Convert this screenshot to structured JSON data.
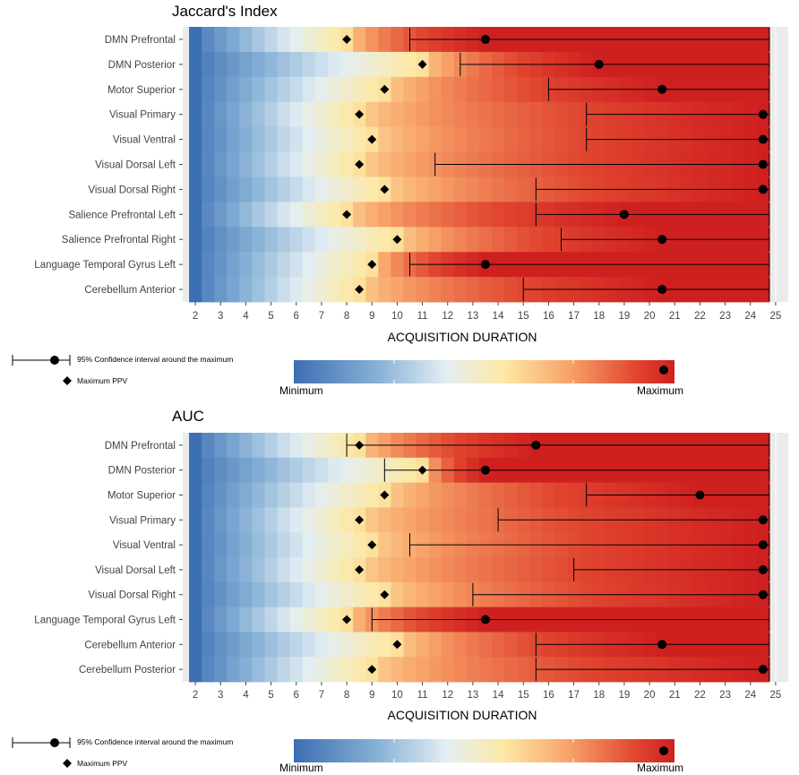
{
  "chart_data": [
    {
      "type": "heatmap",
      "title": "Jaccard's Index",
      "xlabel": "ACQUISITION DURATION",
      "ylabel": "",
      "xlim": [
        1.5,
        25.5
      ],
      "x_ticks": [
        2,
        3,
        4,
        5,
        6,
        7,
        8,
        9,
        10,
        11,
        12,
        13,
        14,
        15,
        16,
        17,
        18,
        19,
        20,
        21,
        22,
        23,
        24,
        25
      ],
      "heat_x_range": [
        1.75,
        24.75
      ],
      "rows": [
        {
          "label": "DMN Prefrontal",
          "max_ppv": 8,
          "maximum": 13.5,
          "ci": [
            10.5,
            24.75
          ]
        },
        {
          "label": "DMN Posterior",
          "max_ppv": 11,
          "maximum": 18,
          "ci": [
            12.5,
            24.75
          ]
        },
        {
          "label": "Motor Superior",
          "max_ppv": 9.5,
          "maximum": 20.5,
          "ci": [
            16,
            24.75
          ]
        },
        {
          "label": "Visual Primary",
          "max_ppv": 8.5,
          "maximum": 24.5,
          "ci": [
            17.5,
            24.75
          ]
        },
        {
          "label": "Visual Ventral",
          "max_ppv": 9,
          "maximum": 24.5,
          "ci": [
            17.5,
            24.75
          ]
        },
        {
          "label": "Visual Dorsal Left",
          "max_ppv": 8.5,
          "maximum": 24.5,
          "ci": [
            11.5,
            24.75
          ]
        },
        {
          "label": "Visual Dorsal Right",
          "max_ppv": 9.5,
          "maximum": 24.5,
          "ci": [
            15.5,
            24.75
          ]
        },
        {
          "label": "Salience Prefrontal Left",
          "max_ppv": 8,
          "maximum": 19,
          "ci": [
            15.5,
            24.75
          ]
        },
        {
          "label": "Salience Prefrontal Right",
          "max_ppv": 10,
          "maximum": 20.5,
          "ci": [
            16.5,
            24.75
          ]
        },
        {
          "label": "Language Temporal Gyrus Left",
          "max_ppv": 9,
          "maximum": 13.5,
          "ci": [
            10.5,
            24.75
          ]
        },
        {
          "label": "Cerebellum Anterior",
          "max_ppv": 8.5,
          "maximum": 20.5,
          "ci": [
            15,
            24.75
          ]
        }
      ]
    },
    {
      "type": "heatmap",
      "title": "AUC",
      "xlabel": "ACQUISITION DURATION",
      "ylabel": "",
      "xlim": [
        1.5,
        25.5
      ],
      "x_ticks": [
        2,
        3,
        4,
        5,
        6,
        7,
        8,
        9,
        10,
        11,
        12,
        13,
        14,
        15,
        16,
        17,
        18,
        19,
        20,
        21,
        22,
        23,
        24,
        25
      ],
      "heat_x_range": [
        1.75,
        24.75
      ],
      "rows": [
        {
          "label": "DMN Prefrontal",
          "max_ppv": 8.5,
          "maximum": 15.5,
          "ci": [
            8,
            24.75
          ]
        },
        {
          "label": "DMN Posterior",
          "max_ppv": 11,
          "maximum": 13.5,
          "ci": [
            9.5,
            24.75
          ]
        },
        {
          "label": "Motor Superior",
          "max_ppv": 9.5,
          "maximum": 22,
          "ci": [
            17.5,
            24.75
          ]
        },
        {
          "label": "Visual Primary",
          "max_ppv": 8.5,
          "maximum": 24.5,
          "ci": [
            14,
            24.75
          ]
        },
        {
          "label": "Visual Ventral",
          "max_ppv": 9,
          "maximum": 24.5,
          "ci": [
            10.5,
            24.75
          ]
        },
        {
          "label": "Visual Dorsal Left",
          "max_ppv": 8.5,
          "maximum": 24.5,
          "ci": [
            17,
            24.75
          ]
        },
        {
          "label": "Visual Dorsal Right",
          "max_ppv": 9.5,
          "maximum": 24.5,
          "ci": [
            13,
            24.75
          ]
        },
        {
          "label": "Language Temporal Gyrus Left",
          "max_ppv": 8,
          "maximum": 13.5,
          "ci": [
            9,
            24.75
          ]
        },
        {
          "label": "Cerebellum Anterior",
          "max_ppv": 10,
          "maximum": 20.5,
          "ci": [
            15.5,
            24.75
          ]
        },
        {
          "label": "Cerebellum Posterior",
          "max_ppv": 9,
          "maximum": 24.5,
          "ci": [
            15.5,
            24.75
          ]
        }
      ]
    }
  ],
  "legend": {
    "ci_label": "95% Confidence interval around the maximum",
    "ppv_label": "Maximum PPV"
  },
  "colorbar": {
    "min_label": "Minimum",
    "max_label": "Maximum"
  },
  "colors": {
    "panel_bg": "#ebebeb",
    "grid": "#ffffff",
    "palette": [
      "#3c6eb4",
      "#87b1d6",
      "#e3eef3",
      "#fde9a5",
      "#f8a46a",
      "#e0452f",
      "#cf2020"
    ]
  }
}
